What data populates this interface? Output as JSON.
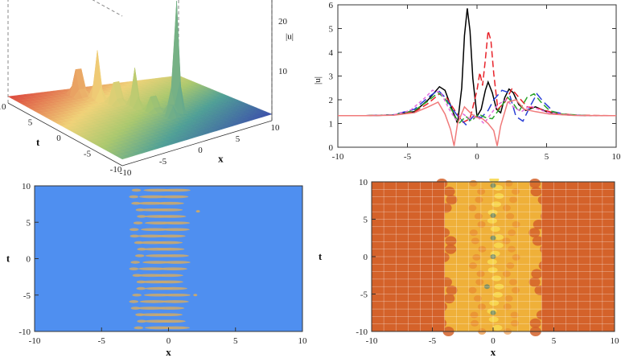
{
  "chart_data": [
    {
      "type": "surface3d",
      "xlabel": "x",
      "ylabel": "t",
      "zlabel": "|u|",
      "x_ticks": [
        "-10",
        "-5",
        "0",
        "5",
        "10"
      ],
      "t_ticks": [
        "-10",
        "-5",
        "0",
        "5",
        "10"
      ],
      "z_ticks": [
        "10",
        "20"
      ],
      "xlim": [
        -10,
        10
      ],
      "tlim": [
        -10,
        10
      ],
      "zlim": [
        0,
        28
      ],
      "peaks": [
        {
          "x": 2.5,
          "t": -2,
          "height": 28
        },
        {
          "x": -3,
          "t": 8,
          "height": 12
        },
        {
          "x": -2,
          "t": 6,
          "height": 11
        },
        {
          "x": -1,
          "t": 4,
          "height": 10
        },
        {
          "x": 0,
          "t": 2,
          "height": 9
        },
        {
          "x": 1,
          "t": 0,
          "height": 7
        },
        {
          "x": 1.5,
          "t": -3,
          "height": 5
        }
      ]
    },
    {
      "type": "line",
      "ylabel": "|u|",
      "xlim": [
        -10,
        10
      ],
      "ylim": [
        0,
        6
      ],
      "x_ticks": [
        "-10",
        "-5",
        "0",
        "5",
        "10"
      ],
      "y_ticks": [
        "0",
        "1",
        "2",
        "3",
        "4",
        "5",
        "6"
      ],
      "series": [
        {
          "color": "#000000",
          "dash": "solid",
          "points": [
            [
              -10,
              1.33
            ],
            [
              -8,
              1.33
            ],
            [
              -6,
              1.36
            ],
            [
              -4.5,
              1.5
            ],
            [
              -3.5,
              2.0
            ],
            [
              -2.7,
              2.55
            ],
            [
              -2.3,
              2.4
            ],
            [
              -1.8,
              1.6
            ],
            [
              -1.4,
              1.0
            ],
            [
              -1.1,
              2.5
            ],
            [
              -0.9,
              4.7
            ],
            [
              -0.7,
              5.85
            ],
            [
              -0.5,
              4.9
            ],
            [
              -0.3,
              2.9
            ],
            [
              0,
              1.3
            ],
            [
              0.3,
              1.6
            ],
            [
              0.6,
              2.4
            ],
            [
              0.8,
              2.75
            ],
            [
              1.1,
              2.3
            ],
            [
              1.4,
              1.6
            ],
            [
              1.7,
              1.45
            ],
            [
              2.0,
              2.1
            ],
            [
              2.3,
              2.45
            ],
            [
              2.6,
              2.3
            ],
            [
              3.0,
              1.8
            ],
            [
              3.5,
              1.55
            ],
            [
              4.2,
              1.7
            ],
            [
              5,
              1.5
            ],
            [
              6,
              1.38
            ],
            [
              8,
              1.33
            ],
            [
              10,
              1.33
            ]
          ]
        },
        {
          "color": "#e8232a",
          "dash": "8 4",
          "points": [
            [
              -10,
              1.33
            ],
            [
              -8,
              1.33
            ],
            [
              -6,
              1.36
            ],
            [
              -4.5,
              1.48
            ],
            [
              -3.5,
              1.85
            ],
            [
              -2.7,
              2.25
            ],
            [
              -2.2,
              2.1
            ],
            [
              -1.6,
              1.55
            ],
            [
              -1.0,
              1.05
            ],
            [
              -0.5,
              1.2
            ],
            [
              0,
              2.4
            ],
            [
              0.2,
              3.15
            ],
            [
              0.4,
              2.6
            ],
            [
              0.6,
              3.7
            ],
            [
              0.8,
              4.9
            ],
            [
              1.0,
              4.5
            ],
            [
              1.2,
              3.1
            ],
            [
              1.5,
              1.6
            ],
            [
              2.0,
              1.9
            ],
            [
              2.5,
              2.45
            ],
            [
              3.0,
              2.1
            ],
            [
              3.6,
              1.7
            ],
            [
              4.5,
              1.62
            ],
            [
              5.5,
              1.45
            ],
            [
              7,
              1.35
            ],
            [
              10,
              1.33
            ]
          ]
        },
        {
          "color": "#2a3fd6",
          "dash": "10 5",
          "points": [
            [
              -10,
              1.33
            ],
            [
              -8,
              1.33
            ],
            [
              -6,
              1.37
            ],
            [
              -4.5,
              1.6
            ],
            [
              -3.5,
              2.1
            ],
            [
              -2.8,
              2.4
            ],
            [
              -2.3,
              2.1
            ],
            [
              -1.5,
              1.4
            ],
            [
              -0.8,
              0.95
            ],
            [
              -0.2,
              1.35
            ],
            [
              0.3,
              1.25
            ],
            [
              0.8,
              1.55
            ],
            [
              1.2,
              2.0
            ],
            [
              1.8,
              2.4
            ],
            [
              2.3,
              2.3
            ],
            [
              2.8,
              1.3
            ],
            [
              3.3,
              1.1
            ],
            [
              3.8,
              1.7
            ],
            [
              4.3,
              2.25
            ],
            [
              4.8,
              1.9
            ],
            [
              5.5,
              1.5
            ],
            [
              6.5,
              1.36
            ],
            [
              8,
              1.33
            ],
            [
              10,
              1.33
            ]
          ]
        },
        {
          "color": "#2aa52a",
          "dash": "8 4",
          "points": [
            [
              -10,
              1.33
            ],
            [
              -8,
              1.33
            ],
            [
              -6,
              1.36
            ],
            [
              -4.5,
              1.55
            ],
            [
              -3.5,
              1.95
            ],
            [
              -2.8,
              2.3
            ],
            [
              -2.3,
              2.05
            ],
            [
              -1.7,
              1.45
            ],
            [
              -1.3,
              1.0
            ],
            [
              -0.8,
              1.3
            ],
            [
              -0.4,
              1.1
            ],
            [
              0.1,
              1.4
            ],
            [
              0.6,
              1.25
            ],
            [
              1.1,
              1.2
            ],
            [
              1.6,
              1.6
            ],
            [
              2.2,
              2.1
            ],
            [
              2.6,
              1.85
            ],
            [
              3.0,
              1.5
            ],
            [
              3.6,
              2.1
            ],
            [
              4.1,
              2.25
            ],
            [
              4.6,
              1.9
            ],
            [
              5.2,
              1.55
            ],
            [
              6,
              1.4
            ],
            [
              8,
              1.33
            ],
            [
              10,
              1.33
            ]
          ]
        },
        {
          "color": "#e36adf",
          "dash": "4 3",
          "points": [
            [
              -10,
              1.33
            ],
            [
              -8,
              1.33
            ],
            [
              -6,
              1.36
            ],
            [
              -4.8,
              1.55
            ],
            [
              -3.8,
              2.05
            ],
            [
              -3.2,
              2.4
            ],
            [
              -2.6,
              2.3
            ],
            [
              -2.0,
              1.6
            ],
            [
              -1.5,
              1.15
            ],
            [
              -1.0,
              1.4
            ],
            [
              -0.5,
              1.2
            ],
            [
              0,
              1.3
            ],
            [
              0.5,
              1.0
            ],
            [
              1.0,
              1.4
            ],
            [
              1.5,
              1.8
            ],
            [
              2.1,
              2.0
            ],
            [
              2.6,
              1.7
            ],
            [
              3.2,
              1.5
            ],
            [
              3.8,
              1.75
            ],
            [
              4.4,
              1.6
            ],
            [
              5.2,
              1.45
            ],
            [
              6.5,
              1.36
            ],
            [
              8,
              1.33
            ],
            [
              10,
              1.33
            ]
          ]
        },
        {
          "color": "#f07a7a",
          "dash": "solid",
          "points": [
            [
              -10,
              1.33
            ],
            [
              -8,
              1.33
            ],
            [
              -6,
              1.35
            ],
            [
              -4.5,
              1.45
            ],
            [
              -3.5,
              1.7
            ],
            [
              -2.8,
              1.9
            ],
            [
              -2.3,
              1.4
            ],
            [
              -1.9,
              0.75
            ],
            [
              -1.65,
              0.05
            ],
            [
              -1.4,
              1.0
            ],
            [
              -0.9,
              1.7
            ],
            [
              -0.4,
              1.4
            ],
            [
              0,
              1.25
            ],
            [
              0.4,
              1.2
            ],
            [
              0.8,
              1.0
            ],
            [
              1.2,
              0.7
            ],
            [
              1.45,
              0.05
            ],
            [
              1.7,
              0.9
            ],
            [
              2.2,
              1.9
            ],
            [
              2.8,
              2.0
            ],
            [
              3.4,
              1.6
            ],
            [
              4.2,
              1.5
            ],
            [
              5.2,
              1.4
            ],
            [
              7,
              1.34
            ],
            [
              10,
              1.33
            ]
          ]
        }
      ]
    },
    {
      "type": "heatmap",
      "xlabel": "x",
      "ylabel": "t",
      "xlim": [
        -10,
        10
      ],
      "ylim": [
        -10,
        10
      ],
      "x_ticks": [
        "-10",
        "-5",
        "0",
        "5",
        "10"
      ],
      "y_ticks": [
        "-10",
        "-5",
        "0",
        "5",
        "10"
      ],
      "colors": {
        "background": "#4f8ff0",
        "feature": "#c8a870"
      }
    },
    {
      "type": "heatmap",
      "xlabel": "x",
      "ylabel": "t",
      "xlim": [
        -10,
        10
      ],
      "ylim": [
        -10,
        10
      ],
      "x_ticks": [
        "-10",
        "-5",
        "0",
        "5",
        "10"
      ],
      "y_ticks": [
        "-10",
        "-5",
        "0",
        "5",
        "10"
      ],
      "grid": true,
      "colors": {
        "background": "#d4622a",
        "band": "#f0b43a",
        "bright": "#f7d850",
        "dark": "#6a8a6a"
      }
    }
  ]
}
